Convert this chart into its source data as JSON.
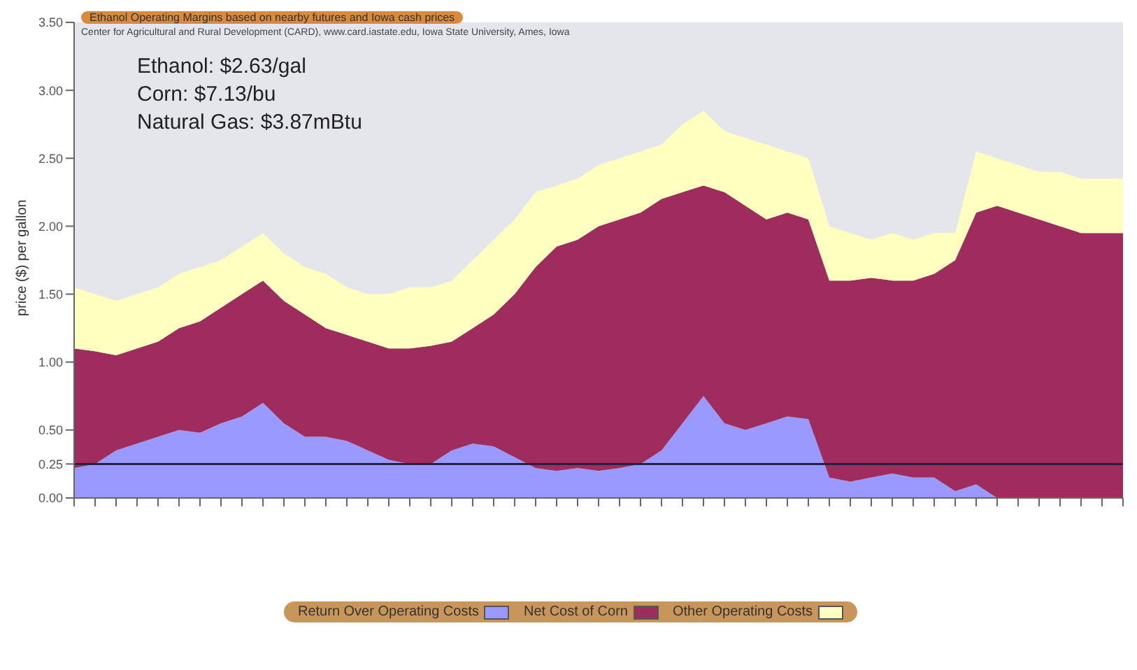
{
  "chart_data": {
    "type": "area",
    "title": "Ethanol Operating Margins based on nearby futures and Iowa cash prices",
    "ylabel": "price ($) per gallon",
    "stacked": true,
    "annotations": [
      "Center for Agricultural and Rural Development (CARD), www.card.iastate.edu, Iowa State University, Ames, Iowa",
      "Ethanol:  $2.63/gal",
      "Corn:  $7.13/bu",
      "Natural Gas:  $3.87mBtu"
    ],
    "categories": [
      null,
      null,
      null,
      null,
      null,
      null,
      null,
      null,
      null,
      null,
      null,
      null,
      null,
      null,
      null,
      null,
      null,
      null,
      null,
      null,
      null,
      null,
      null,
      null,
      null,
      null,
      null,
      null,
      null,
      null,
      null,
      null,
      null,
      null,
      null,
      null,
      null,
      null,
      null,
      null,
      null,
      null,
      null,
      null,
      null,
      null,
      null,
      null,
      null,
      null,
      null
    ],
    "series": [
      {
        "name": "Return Over Operating Costs",
        "color": "#9999ff",
        "values": [
          0.22,
          0.25,
          0.35,
          0.4,
          0.45,
          0.5,
          0.48,
          0.55,
          0.6,
          0.7,
          0.55,
          0.45,
          0.45,
          0.42,
          0.35,
          0.28,
          0.25,
          0.25,
          0.35,
          0.4,
          0.38,
          0.3,
          0.22,
          0.2,
          0.22,
          0.2,
          0.22,
          0.25,
          0.35,
          0.55,
          0.75,
          0.55,
          0.5,
          0.55,
          0.6,
          0.58,
          0.15,
          0.12,
          0.15,
          0.18,
          0.15,
          0.15,
          0.05,
          0.1,
          0,
          0,
          0,
          0,
          0,
          0,
          0
        ]
      },
      {
        "name": "Net Cost of Corn",
        "color": "#9e2d5e",
        "values": [
          0.88,
          0.83,
          0.7,
          0.7,
          0.7,
          0.75,
          0.82,
          0.85,
          0.9,
          0.9,
          0.9,
          0.9,
          0.8,
          0.78,
          0.8,
          0.82,
          0.85,
          0.87,
          0.8,
          0.85,
          0.97,
          1.2,
          1.48,
          1.65,
          1.68,
          1.8,
          1.83,
          1.85,
          1.85,
          1.7,
          1.55,
          1.7,
          1.65,
          1.5,
          1.5,
          1.47,
          1.45,
          1.48,
          1.47,
          1.42,
          1.45,
          1.5,
          1.7,
          2.0,
          2.15,
          2.1,
          2.05,
          2.0,
          1.95,
          1.95,
          1.95
        ]
      },
      {
        "name": "Other Operating Costs",
        "color": "#ffffc0",
        "values": [
          0.45,
          0.42,
          0.4,
          0.4,
          0.4,
          0.4,
          0.4,
          0.35,
          0.35,
          0.35,
          0.35,
          0.35,
          0.4,
          0.35,
          0.35,
          0.4,
          0.45,
          0.43,
          0.45,
          0.5,
          0.55,
          0.55,
          0.55,
          0.45,
          0.45,
          0.45,
          0.45,
          0.45,
          0.4,
          0.5,
          0.55,
          0.45,
          0.5,
          0.55,
          0.45,
          0.45,
          0.4,
          0.35,
          0.28,
          0.35,
          0.3,
          0.3,
          0.2,
          0.45,
          0.35,
          0.35,
          0.35,
          0.4,
          0.4,
          0.4,
          0.4
        ]
      }
    ],
    "ylim": [
      0,
      3.5
    ],
    "yticks": [
      {
        "value": 0,
        "label": "0.00"
      },
      {
        "value": 0.25,
        "label": "0.25"
      },
      {
        "value": 0.5,
        "label": "0.50"
      },
      {
        "value": 1,
        "label": "1.00"
      },
      {
        "value": 1.5,
        "label": "1.50"
      },
      {
        "value": 2,
        "label": "2.00"
      },
      {
        "value": 2.5,
        "label": "2.50"
      },
      {
        "value": 3,
        "label": "3.00"
      },
      {
        "value": 3.5,
        "label": "3.50"
      }
    ],
    "ref_lines": [
      {
        "axis": "y",
        "value": 0.25,
        "color": "#222244"
      }
    ],
    "legend": "bottom"
  }
}
